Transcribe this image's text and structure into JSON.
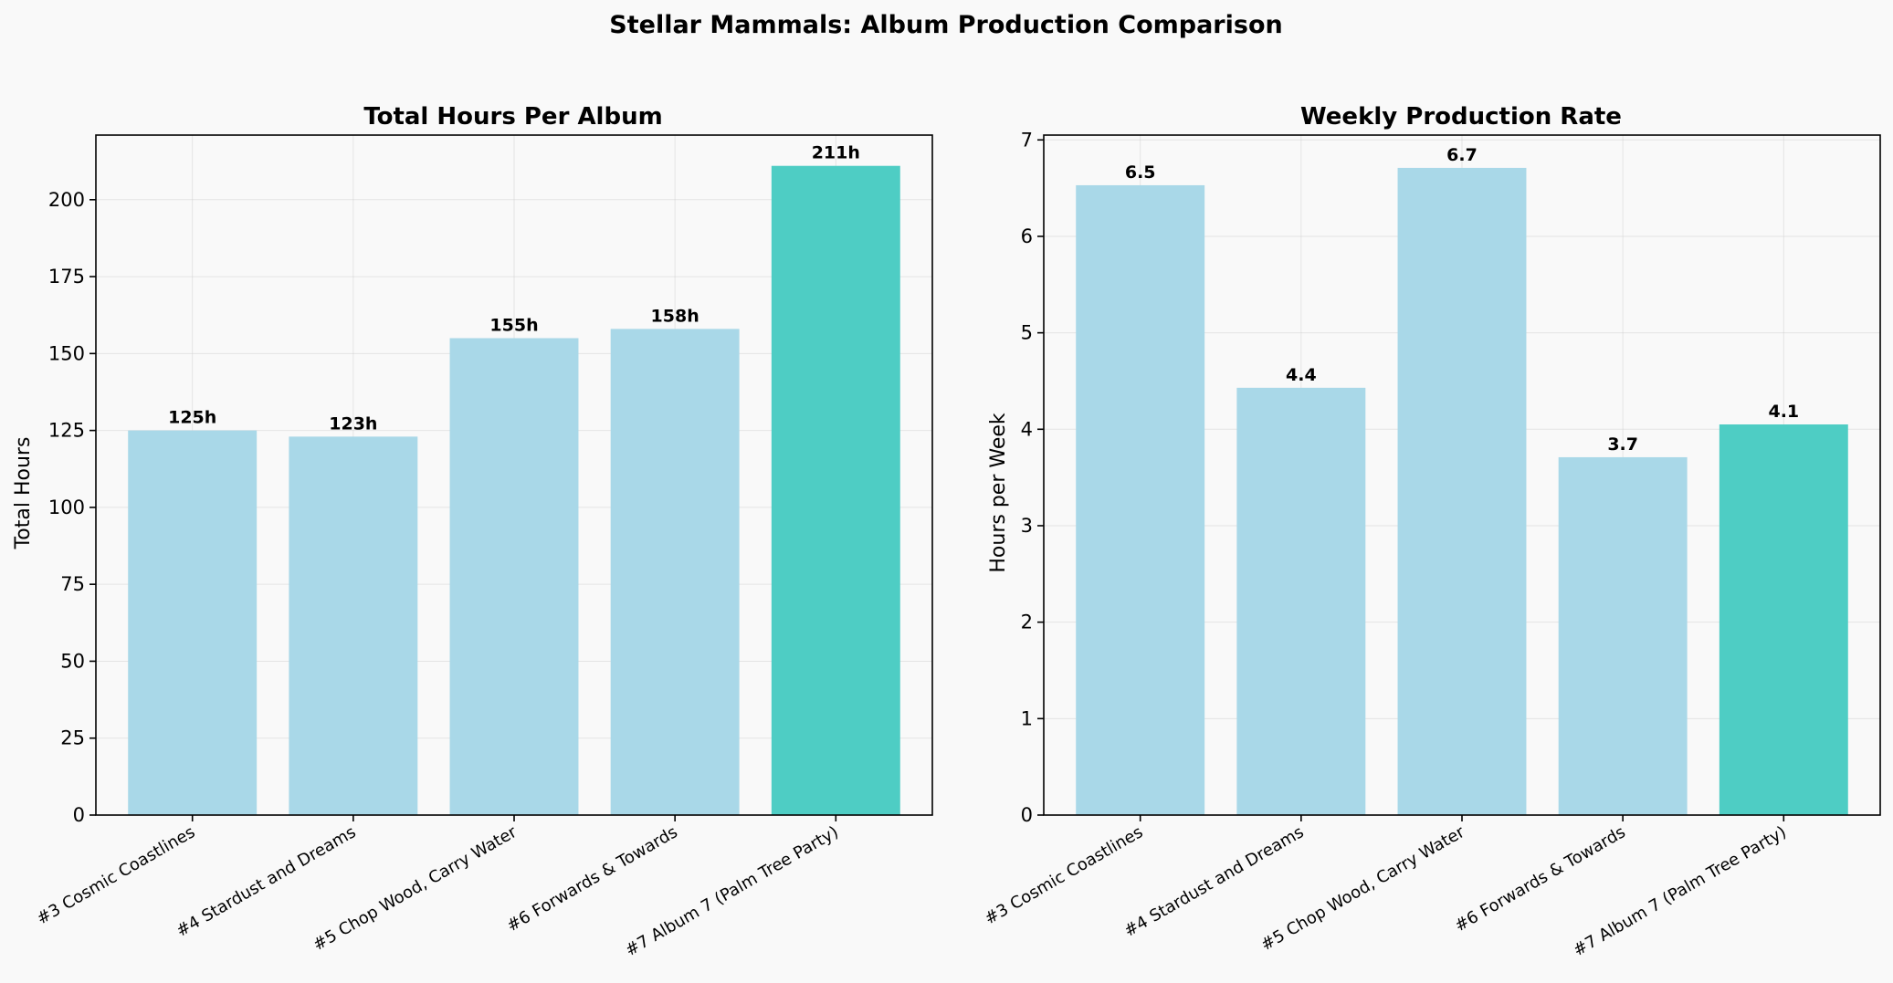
{
  "figure": {
    "title": "Stellar Mammals: Album Production Comparison",
    "background": "#f9f9f9"
  },
  "colors": {
    "regular_bar": "#a9d8e8",
    "highlight_bar": "#4ecdc4"
  },
  "chart_data": [
    {
      "type": "bar",
      "title": "Total Hours Per Album",
      "xlabel": "",
      "ylabel": "Total Hours",
      "categories": [
        "#3 Cosmic Coastlines",
        "#4 Stardust and Dreams",
        "#5 Chop Wood, Carry Water",
        "#6 Forwards & Towards",
        "#7 Album 7 (Palm Tree Party)"
      ],
      "values": [
        125,
        123,
        155,
        158,
        211
      ],
      "data_labels": [
        "125h",
        "123h",
        "155h",
        "158h",
        "211h"
      ],
      "highlight_index": 4,
      "ylim": [
        0,
        221
      ],
      "yticks": [
        0,
        25,
        50,
        75,
        100,
        125,
        150,
        175,
        200
      ],
      "grid": true
    },
    {
      "type": "bar",
      "title": "Weekly Production Rate",
      "xlabel": "",
      "ylabel": "Hours per Week",
      "categories": [
        "#3 Cosmic Coastlines",
        "#4 Stardust and Dreams",
        "#5 Chop Wood, Carry Water",
        "#6 Forwards & Towards",
        "#7 Album 7 (Palm Tree Party)"
      ],
      "values": [
        6.53,
        4.43,
        6.71,
        3.71,
        4.05
      ],
      "data_labels": [
        "6.5",
        "4.4",
        "6.7",
        "3.7",
        "4.1"
      ],
      "highlight_index": 4,
      "ylim": [
        0,
        7.05
      ],
      "yticks": [
        0,
        1,
        2,
        3,
        4,
        5,
        6,
        7
      ],
      "grid": true
    }
  ]
}
